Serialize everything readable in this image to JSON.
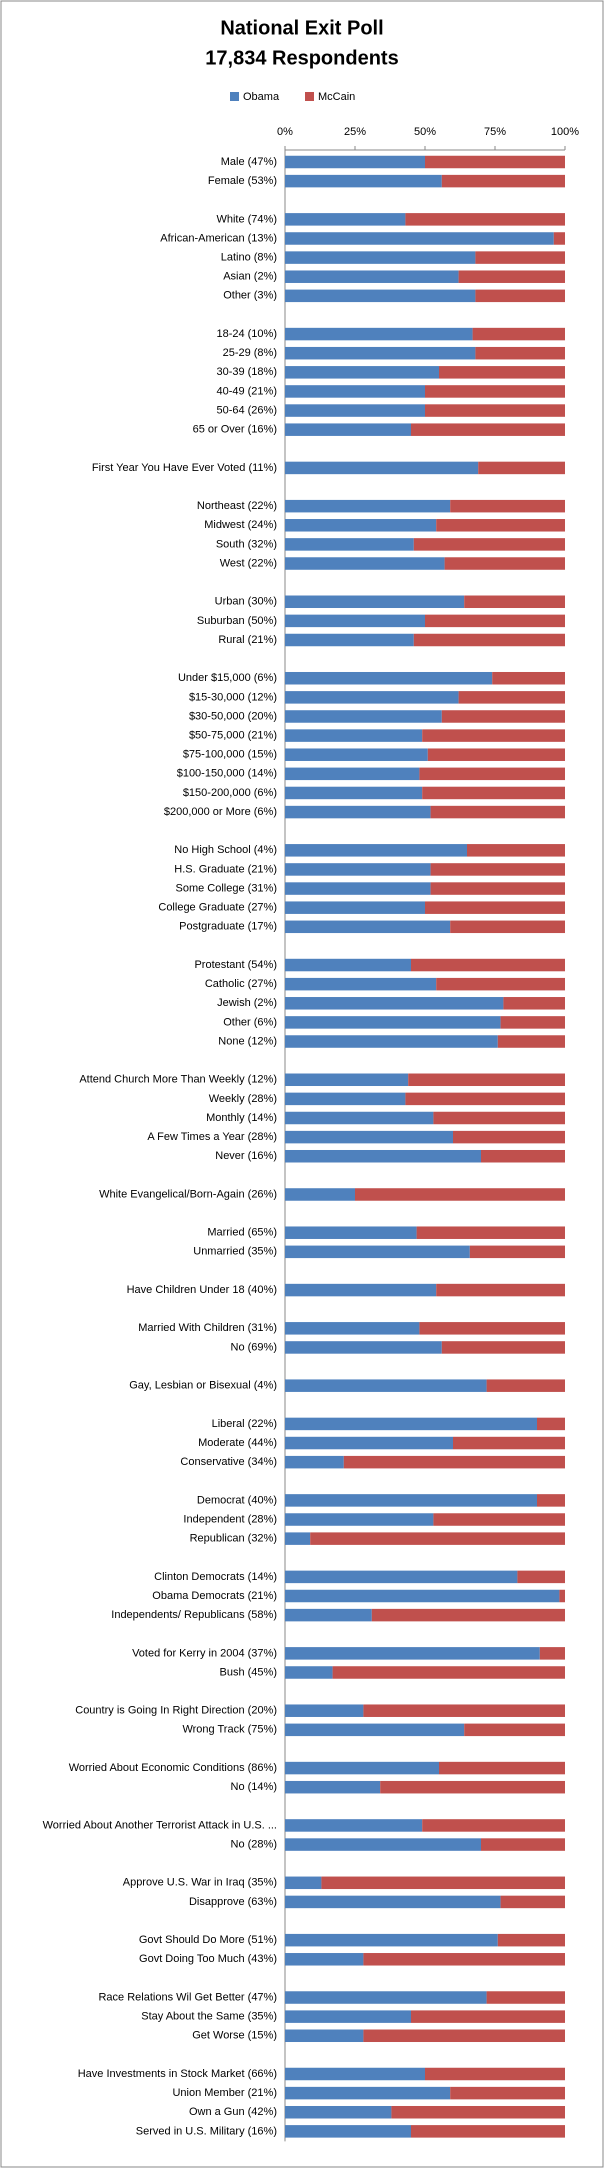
{
  "chart_data": {
    "type": "stacked_bar_100",
    "orientation": "horizontal",
    "title": "National Exit Poll",
    "subtitle": "17,834 Respondents",
    "categories": [
      "Male (47%)",
      "Female (53%)",
      null,
      "White (74%)",
      "African-American (13%)",
      "Latino (8%)",
      "Asian (2%)",
      "Other (3%)",
      null,
      "18-24 (10%)",
      "25-29 (8%)",
      "30-39 (18%)",
      "40-49 (21%)",
      "50-64 (26%)",
      "65 or Over (16%)",
      null,
      "First Year You Have Ever Voted (11%)",
      null,
      "Northeast (22%)",
      "Midwest (24%)",
      "South (32%)",
      "West (22%)",
      null,
      "Urban (30%)",
      "Suburban (50%)",
      "Rural (21%)",
      null,
      "Under $15,000 (6%)",
      "$15-30,000 (12%)",
      "$30-50,000 (20%)",
      "$50-75,000 (21%)",
      "$75-100,000 (15%)",
      "$100-150,000 (14%)",
      "$150-200,000 (6%)",
      "$200,000 or More (6%)",
      null,
      "No High School (4%)",
      "H.S. Graduate (21%)",
      "Some College (31%)",
      "College Graduate (27%)",
      "Postgraduate (17%)",
      null,
      "Protestant (54%)",
      "Catholic (27%)",
      "Jewish (2%)",
      "Other (6%)",
      "None (12%)",
      null,
      "Attend Church More Than Weekly (12%)",
      "Weekly (28%)",
      "Monthly (14%)",
      "A Few Times a Year (28%)",
      "Never (16%)",
      null,
      "White Evangelical/Born-Again  (26%)",
      null,
      "Married (65%)",
      "Unmarried (35%)",
      null,
      "Have Children Under 18 (40%)",
      null,
      "Married With Children (31%)",
      "No (69%)",
      null,
      "Gay, Lesbian or Bisexual (4%)",
      null,
      "Liberal (22%)",
      "Moderate (44%)",
      "Conservative (34%)",
      null,
      "Democrat (40%)",
      "Independent (28%)",
      "Republican (32%)",
      null,
      "Clinton Democrats (14%)",
      "Obama Democrats (21%)",
      "Independents/ Republicans (58%)",
      null,
      "Voted for Kerry in 2004 (37%)",
      "Bush (45%)",
      null,
      "Country is Going In Right Direction (20%)",
      "Wrong Track (75%)",
      null,
      "Worried About Economic Conditions (86%)",
      "No (14%)",
      null,
      "Worried About Another Terrorist Attack in U.S. ...",
      "No (28%)",
      null,
      "Approve U.S. War in Iraq (35%)",
      "Disapprove (63%)",
      null,
      "Govt Should Do More (51%)",
      "Govt Doing Too Much (43%)",
      null,
      "Race Relations Wil Get Better (47%)",
      "Stay About the Same (35%)",
      "Get Worse (15%)",
      null,
      "Have Investments  in Stock Market (66%)",
      "Union Member (21%)",
      "Own a Gun (42%)",
      "Served in U.S. Military (16%)"
    ],
    "series": [
      {
        "name": "Obama",
        "color": "#4f81bd",
        "values": [
          50,
          56,
          null,
          43,
          96,
          68,
          62,
          68,
          null,
          67,
          68,
          55,
          50,
          50,
          45,
          null,
          69,
          null,
          59,
          54,
          46,
          57,
          null,
          64,
          50,
          46,
          null,
          74,
          62,
          56,
          49,
          51,
          48,
          49,
          52,
          null,
          65,
          52,
          52,
          50,
          59,
          null,
          45,
          54,
          78,
          77,
          76,
          null,
          44,
          43,
          53,
          60,
          70,
          null,
          25,
          null,
          47,
          66,
          null,
          54,
          null,
          48,
          56,
          null,
          72,
          null,
          90,
          60,
          21,
          null,
          90,
          53,
          9,
          null,
          83,
          98,
          31,
          null,
          91,
          17,
          null,
          28,
          64,
          null,
          55,
          34,
          null,
          49,
          70,
          null,
          13,
          77,
          null,
          76,
          28,
          null,
          72,
          45,
          28,
          null,
          50,
          59,
          38,
          45
        ]
      },
      {
        "name": "McCain",
        "color": "#c0504d",
        "values": [
          50,
          44,
          null,
          57,
          4,
          32,
          38,
          32,
          null,
          33,
          32,
          45,
          50,
          50,
          55,
          null,
          31,
          null,
          41,
          46,
          54,
          43,
          null,
          36,
          50,
          54,
          null,
          26,
          38,
          44,
          51,
          49,
          52,
          51,
          48,
          null,
          35,
          48,
          48,
          50,
          41,
          null,
          55,
          46,
          22,
          23,
          24,
          null,
          56,
          57,
          47,
          40,
          30,
          null,
          75,
          null,
          53,
          34,
          null,
          46,
          null,
          52,
          44,
          null,
          28,
          null,
          10,
          40,
          79,
          null,
          10,
          47,
          91,
          null,
          17,
          2,
          69,
          null,
          9,
          83,
          null,
          72,
          36,
          null,
          45,
          66,
          null,
          51,
          30,
          null,
          87,
          23,
          null,
          24,
          72,
          null,
          28,
          55,
          72,
          null,
          50,
          41,
          62,
          55
        ]
      }
    ],
    "xlim": [
      0,
      100
    ],
    "xticks": [
      {
        "value": 0,
        "label": "0%"
      },
      {
        "value": 25,
        "label": "25%"
      },
      {
        "value": 50,
        "label": "50%"
      },
      {
        "value": 75,
        "label": "75%"
      },
      {
        "value": 100,
        "label": "100%"
      }
    ],
    "legend": "top",
    "grid": false
  }
}
